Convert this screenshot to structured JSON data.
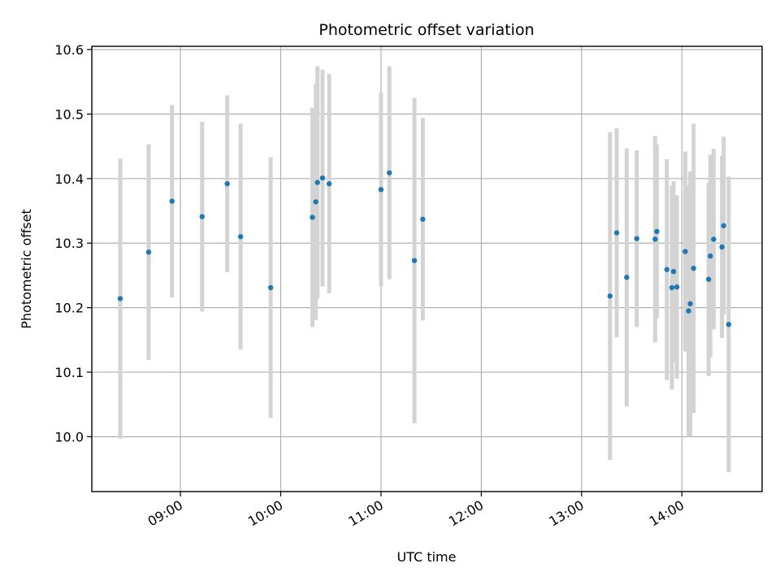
{
  "chart_data": {
    "type": "scatter",
    "title": "Photometric offset variation",
    "xlabel": "UTC time",
    "ylabel": "Photometric offset",
    "x_axis": "time",
    "xlim": [
      "08:07",
      "14:48"
    ],
    "ylim": [
      9.915,
      10.605
    ],
    "x_ticks": [
      "09:00",
      "10:00",
      "11:00",
      "12:00",
      "13:00",
      "14:00"
    ],
    "y_ticks": [
      10.0,
      10.1,
      10.2,
      10.3,
      10.4,
      10.5,
      10.6
    ],
    "grid": true,
    "legend": "none",
    "colors": {
      "point": "#1f77b4",
      "error_bar": "#d3d3d3"
    },
    "series": [
      {
        "points": [
          {
            "x": "08:24",
            "y": 10.214,
            "err": 0.217
          },
          {
            "x": "08:41",
            "y": 10.286,
            "err": 0.167
          },
          {
            "x": "08:55",
            "y": 10.365,
            "err": 0.149
          },
          {
            "x": "09:13",
            "y": 10.341,
            "err": 0.147
          },
          {
            "x": "09:28",
            "y": 10.392,
            "err": 0.137
          },
          {
            "x": "09:36",
            "y": 10.31,
            "err": 0.175
          },
          {
            "x": "09:54",
            "y": 10.231,
            "err": 0.202
          },
          {
            "x": "10:19",
            "y": 10.34,
            "err": 0.17
          },
          {
            "x": "10:21",
            "y": 10.364,
            "err": 0.183
          },
          {
            "x": "10:22",
            "y": 10.394,
            "err": 0.18
          },
          {
            "x": "10:25",
            "y": 10.401,
            "err": 0.168
          },
          {
            "x": "10:29",
            "y": 10.392,
            "err": 0.17
          },
          {
            "x": "11:00",
            "y": 10.383,
            "err": 0.15
          },
          {
            "x": "11:05",
            "y": 10.409,
            "err": 0.165
          },
          {
            "x": "11:20",
            "y": 10.273,
            "err": 0.252
          },
          {
            "x": "11:25",
            "y": 10.337,
            "err": 0.157
          },
          {
            "x": "13:17",
            "y": 10.218,
            "err": 0.254
          },
          {
            "x": "13:21",
            "y": 10.316,
            "err": 0.162
          },
          {
            "x": "13:27",
            "y": 10.247,
            "err": 0.2
          },
          {
            "x": "13:33",
            "y": 10.307,
            "err": 0.137
          },
          {
            "x": "13:44",
            "y": 10.306,
            "err": 0.16
          },
          {
            "x": "13:45",
            "y": 10.318,
            "err": 0.135
          },
          {
            "x": "13:51",
            "y": 10.259,
            "err": 0.171
          },
          {
            "x": "13:54",
            "y": 10.231,
            "err": 0.158
          },
          {
            "x": "13:55",
            "y": 10.256,
            "err": 0.14
          },
          {
            "x": "13:57",
            "y": 10.232,
            "err": 0.142
          },
          {
            "x": "14:02",
            "y": 10.287,
            "err": 0.155
          },
          {
            "x": "14:04",
            "y": 10.195,
            "err": 0.195
          },
          {
            "x": "14:05",
            "y": 10.206,
            "err": 0.205
          },
          {
            "x": "14:07",
            "y": 10.261,
            "err": 0.224
          },
          {
            "x": "14:16",
            "y": 10.244,
            "err": 0.15
          },
          {
            "x": "14:17",
            "y": 10.28,
            "err": 0.157
          },
          {
            "x": "14:19",
            "y": 10.306,
            "err": 0.14
          },
          {
            "x": "14:24",
            "y": 10.294,
            "err": 0.141
          },
          {
            "x": "14:25",
            "y": 10.327,
            "err": 0.138
          },
          {
            "x": "14:28",
            "y": 10.174,
            "err": 0.229
          }
        ]
      }
    ]
  }
}
